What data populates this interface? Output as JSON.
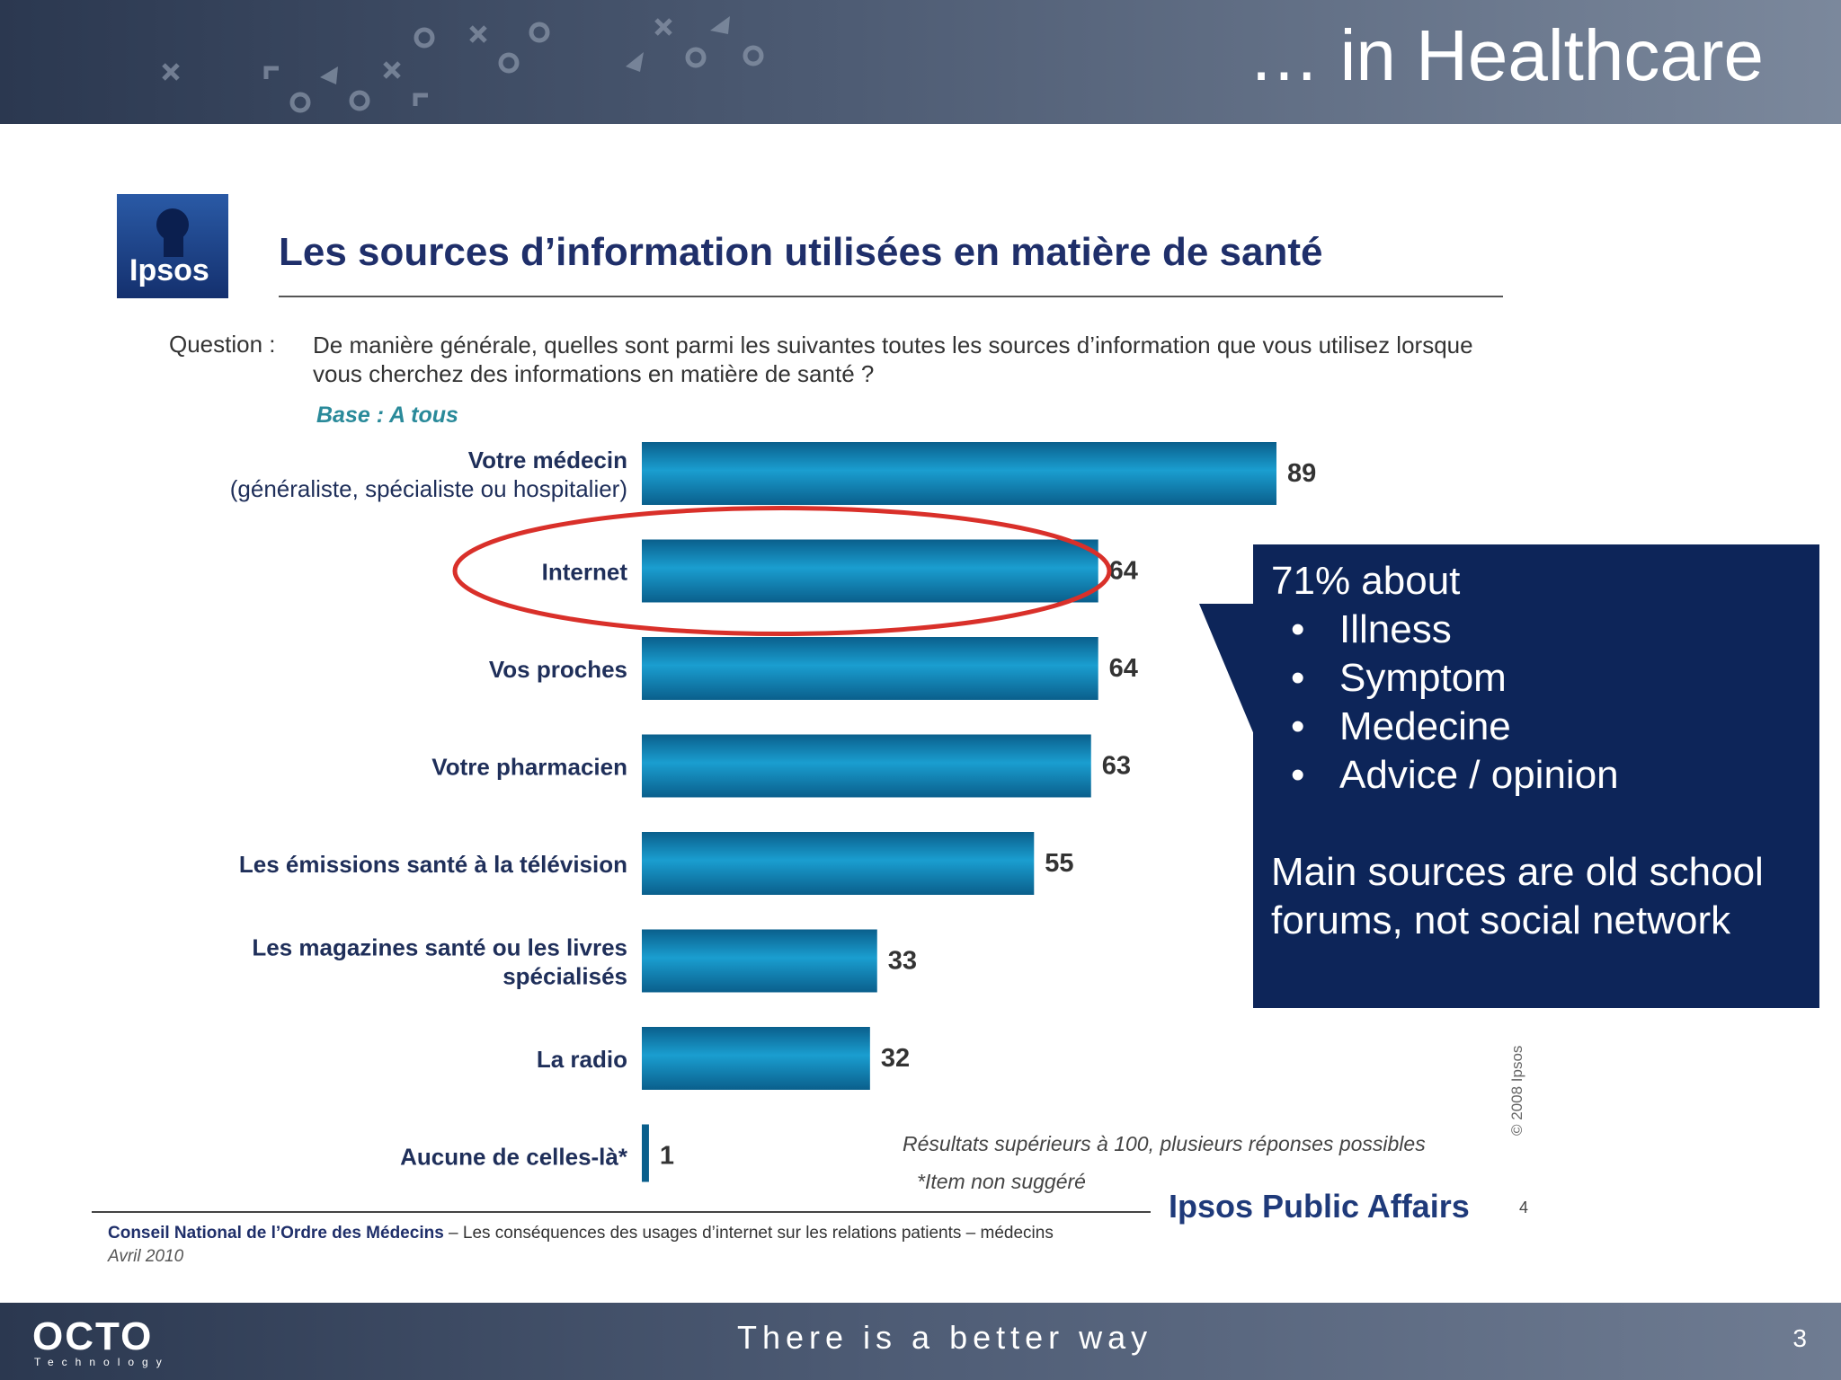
{
  "slide": {
    "title": "… in Healthcare",
    "page_number": "3",
    "footer_tagline": "There is a better way",
    "footer_logo_text": "OCTO",
    "footer_logo_subtext": "Technology"
  },
  "ipsos_logo_text": "Ipsos",
  "chart_data": {
    "type": "bar",
    "orientation": "horizontal",
    "title": "Les sources d’information utilisées en matière de santé",
    "question_label": "Question :",
    "question": "De manière générale, quelles sont parmi les suivantes toutes les sources d’information que vous utilisez lorsque vous cherchez des informations en matière de santé ?",
    "base": "Base : A tous",
    "categories": [
      [
        "Votre médecin",
        "(généraliste, spécialiste ou hospitalier)"
      ],
      [
        "Internet"
      ],
      [
        "Vos proches"
      ],
      [
        "Votre pharmacien"
      ],
      [
        "Les émissions santé à la télévision"
      ],
      [
        "Les magazines santé ou les livres",
        "spécialisés"
      ],
      [
        "La radio"
      ],
      [
        "Aucune de celles-là*"
      ]
    ],
    "values": [
      89,
      64,
      64,
      63,
      55,
      33,
      32,
      1
    ],
    "xlim": [
      0,
      100
    ],
    "bar_color": "#1a8fc0",
    "highlight_color": "#d9302a",
    "highlighted_category": "Internet",
    "grid": false,
    "footnotes": [
      "Résultats supérieurs à 100, plusieurs réponses possibles",
      "*Item non suggéré"
    ],
    "copyright": "© 2008 Ipsos",
    "source_org": "Conseil National de l’Ordre des Médecins",
    "source_text": " – Les conséquences des usages d’internet sur les relations patients – médecins",
    "source_date": "Avril 2010",
    "publisher": "Ipsos Public Affairs",
    "inner_page": "4"
  },
  "callout": {
    "heading": "71% about",
    "bullets": [
      "Illness",
      "Symptom",
      "Medecine",
      "Advice / opinion"
    ],
    "main": "Main sources are old school forums, not social network",
    "background": "#0d2559"
  }
}
